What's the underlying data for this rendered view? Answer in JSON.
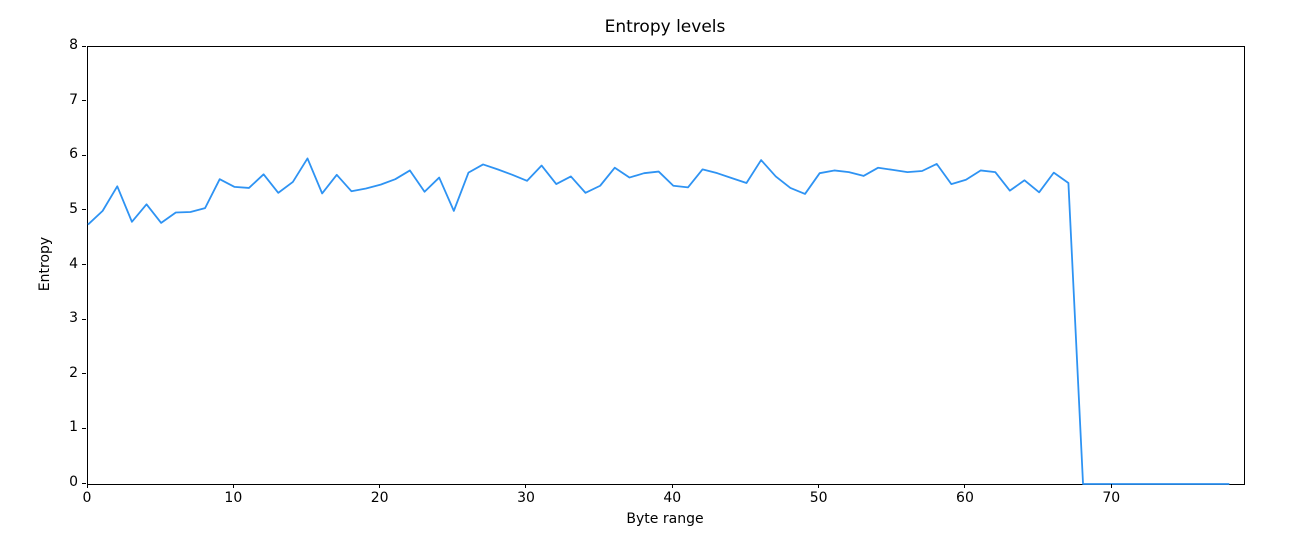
{
  "figure": {
    "background": "#ffffff",
    "text_color": "#000000"
  },
  "chart_data": {
    "type": "line",
    "title": "Entropy levels",
    "xlabel": "Byte range",
    "ylabel": "Entropy",
    "xlim": [
      0,
      79
    ],
    "ylim": [
      0,
      8
    ],
    "x_ticks": [
      0,
      10,
      20,
      30,
      40,
      50,
      60,
      70
    ],
    "y_ticks": [
      0,
      1,
      2,
      3,
      4,
      5,
      6,
      7,
      8
    ],
    "grid": false,
    "legend": "none",
    "line_color": "#2E93F3",
    "series_name": "entropy",
    "x": [
      0,
      1,
      2,
      3,
      4,
      5,
      6,
      7,
      8,
      9,
      10,
      11,
      12,
      13,
      14,
      15,
      16,
      17,
      18,
      19,
      20,
      21,
      22,
      23,
      24,
      25,
      26,
      27,
      28,
      29,
      30,
      31,
      32,
      33,
      34,
      35,
      36,
      37,
      38,
      39,
      40,
      41,
      42,
      43,
      44,
      45,
      46,
      47,
      48,
      49,
      50,
      51,
      52,
      53,
      54,
      55,
      56,
      57,
      58,
      59,
      60,
      61,
      62,
      63,
      64,
      65,
      66,
      67,
      68,
      69,
      70,
      71,
      72,
      73,
      74,
      75,
      76,
      77,
      78
    ],
    "values": [
      4.75,
      5.0,
      5.45,
      4.8,
      5.12,
      4.78,
      4.97,
      4.98,
      5.05,
      5.58,
      5.44,
      5.42,
      5.67,
      5.33,
      5.53,
      5.96,
      5.32,
      5.66,
      5.36,
      5.41,
      5.48,
      5.58,
      5.74,
      5.35,
      5.61,
      5.0,
      5.7,
      5.85,
      5.76,
      5.66,
      5.55,
      5.83,
      5.49,
      5.63,
      5.33,
      5.46,
      5.79,
      5.61,
      5.69,
      5.72,
      5.46,
      5.43,
      5.76,
      5.69,
      5.6,
      5.51,
      5.93,
      5.63,
      5.42,
      5.31,
      5.69,
      5.74,
      5.71,
      5.64,
      5.79,
      5.75,
      5.71,
      5.73,
      5.86,
      5.49,
      5.57,
      5.74,
      5.71,
      5.37,
      5.56,
      5.34,
      5.7,
      5.51,
      0.0,
      0.0,
      0.0,
      0.0,
      0.0,
      0.0,
      0.0,
      0.0,
      0.0,
      0.0,
      0.0
    ]
  }
}
